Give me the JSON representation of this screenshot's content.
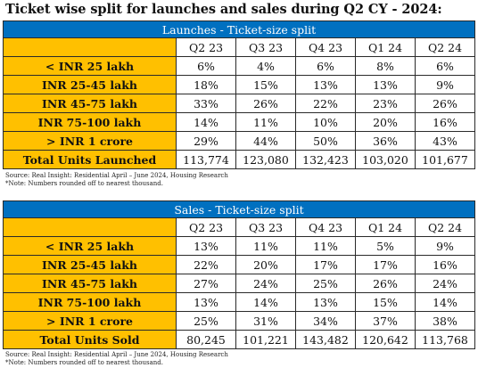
{
  "title": "Ticket wise split for launches and sales during Q2 CY - 2024:",
  "tables": [
    {
      "header": "Launches - Ticket-size split",
      "columns": [
        "Q2 23",
        "Q3 23",
        "Q4 23",
        "Q1 24",
        "Q2 24"
      ],
      "rows": [
        {
          "label": "< INR 25 lakh",
          "values": [
            "6%",
            "4%",
            "6%",
            "8%",
            "6%"
          ]
        },
        {
          "label": "INR 25-45 lakh",
          "values": [
            "18%",
            "15%",
            "13%",
            "13%",
            "9%"
          ]
        },
        {
          "label": "INR 45-75 lakh",
          "values": [
            "33%",
            "26%",
            "22%",
            "23%",
            "26%"
          ]
        },
        {
          "label": "INR 75-100 lakh",
          "values": [
            "14%",
            "11%",
            "10%",
            "20%",
            "16%"
          ]
        },
        {
          "label": "> INR 1 crore",
          "values": [
            "29%",
            "44%",
            "50%",
            "36%",
            "43%"
          ]
        },
        {
          "label": "Total Units Launched",
          "values": [
            "113,774",
            "123,080",
            "132,423",
            "103,020",
            "101,677"
          ]
        }
      ],
      "source": "Source: Real Insight: Residential April – June 2024, Housing Research",
      "note": "*Note: Numbers rounded off to nearest thousand."
    },
    {
      "header": "Sales - Ticket-size split",
      "columns": [
        "Q2 23",
        "Q3 23",
        "Q4 23",
        "Q1 24",
        "Q2 24"
      ],
      "rows": [
        {
          "label": "< INR 25 lakh",
          "values": [
            "13%",
            "11%",
            "11%",
            "5%",
            "9%"
          ]
        },
        {
          "label": "INR 25-45 lakh",
          "values": [
            "22%",
            "20%",
            "17%",
            "17%",
            "16%"
          ]
        },
        {
          "label": "INR 45-75 lakh",
          "values": [
            "27%",
            "24%",
            "25%",
            "26%",
            "24%"
          ]
        },
        {
          "label": "INR 75-100 lakh",
          "values": [
            "13%",
            "14%",
            "13%",
            "15%",
            "14%"
          ]
        },
        {
          "label": "> INR 1 crore",
          "values": [
            "25%",
            "31%",
            "34%",
            "37%",
            "38%"
          ]
        },
        {
          "label": "Total Units Sold",
          "values": [
            "80,245",
            "101,221",
            "143,482",
            "120,642",
            "113,768"
          ]
        }
      ],
      "source": "Source: Real Insight: Residential April – June 2024, Housing Research",
      "note": "*Note: Numbers rounded off to nearest thousand."
    }
  ]
}
